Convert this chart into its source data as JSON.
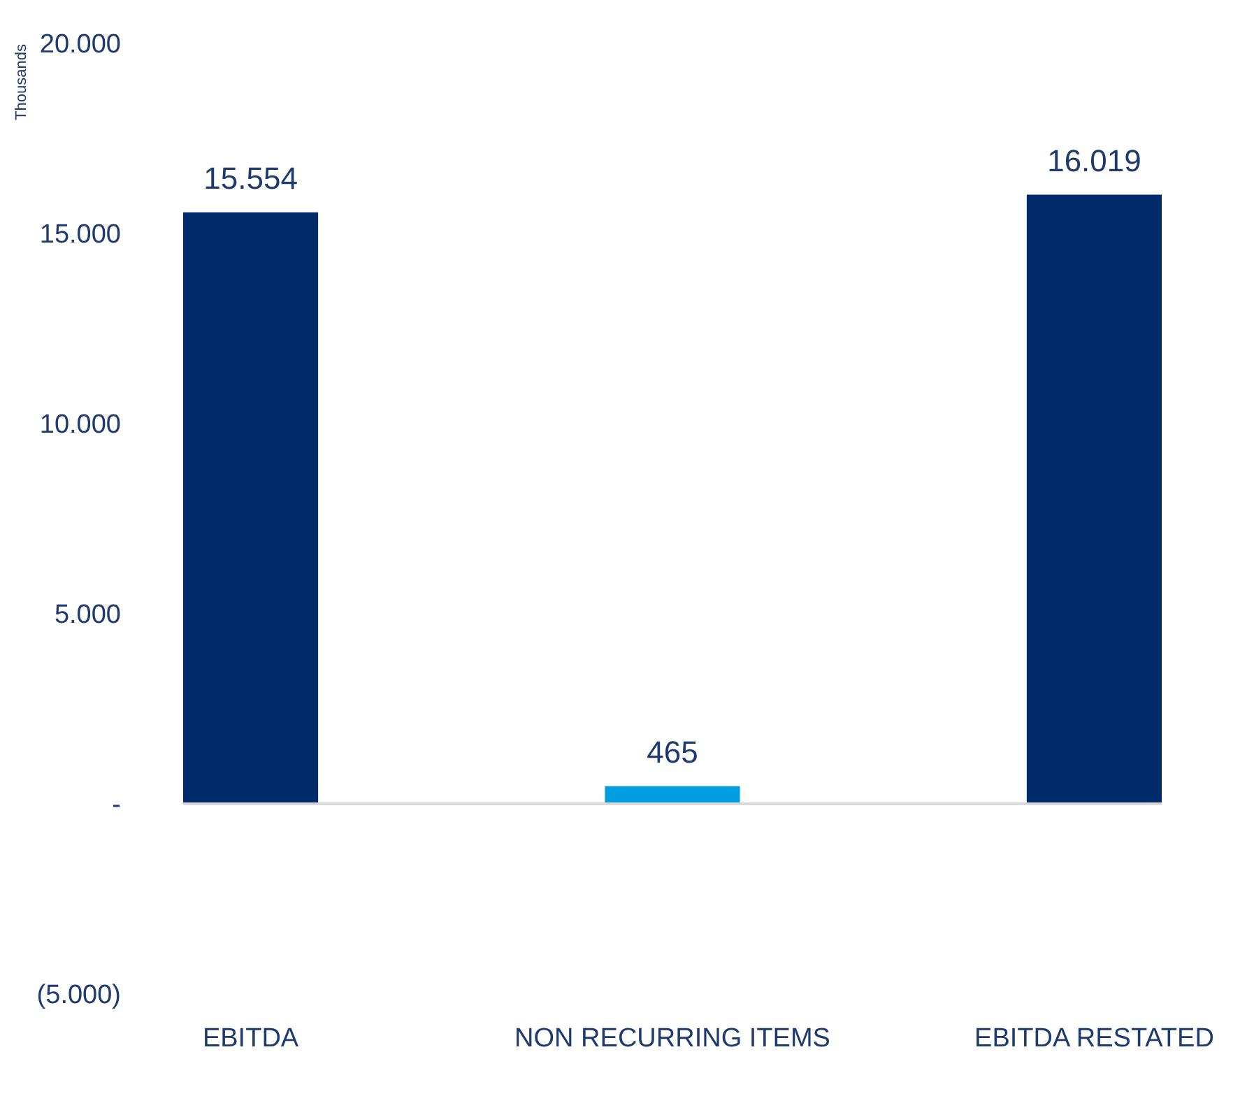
{
  "chart_data": {
    "type": "bar",
    "ylabel": "Thousands",
    "categories": [
      "EBITDA",
      "NON RECURRING ITEMS",
      "EBITDA RESTATED"
    ],
    "values": [
      15554,
      465,
      16019
    ],
    "colors": [
      "#002b6b",
      "#009ee0",
      "#002b6b"
    ],
    "value_labels": [
      "15.554",
      "465",
      "16.019"
    ],
    "ylim": [
      -5000,
      20000
    ],
    "yticks": [
      {
        "value": -5000,
        "label": "(5.000)"
      },
      {
        "value": 0,
        "label": "-"
      },
      {
        "value": 5000,
        "label": "5.000"
      },
      {
        "value": 10000,
        "label": "10.000"
      },
      {
        "value": 15000,
        "label": "15.000"
      },
      {
        "value": 20000,
        "label": "20.000"
      }
    ],
    "ref_lines": [
      {
        "axis": "y",
        "value": 0,
        "color": "#d9d9d9"
      }
    ],
    "grid": false
  }
}
